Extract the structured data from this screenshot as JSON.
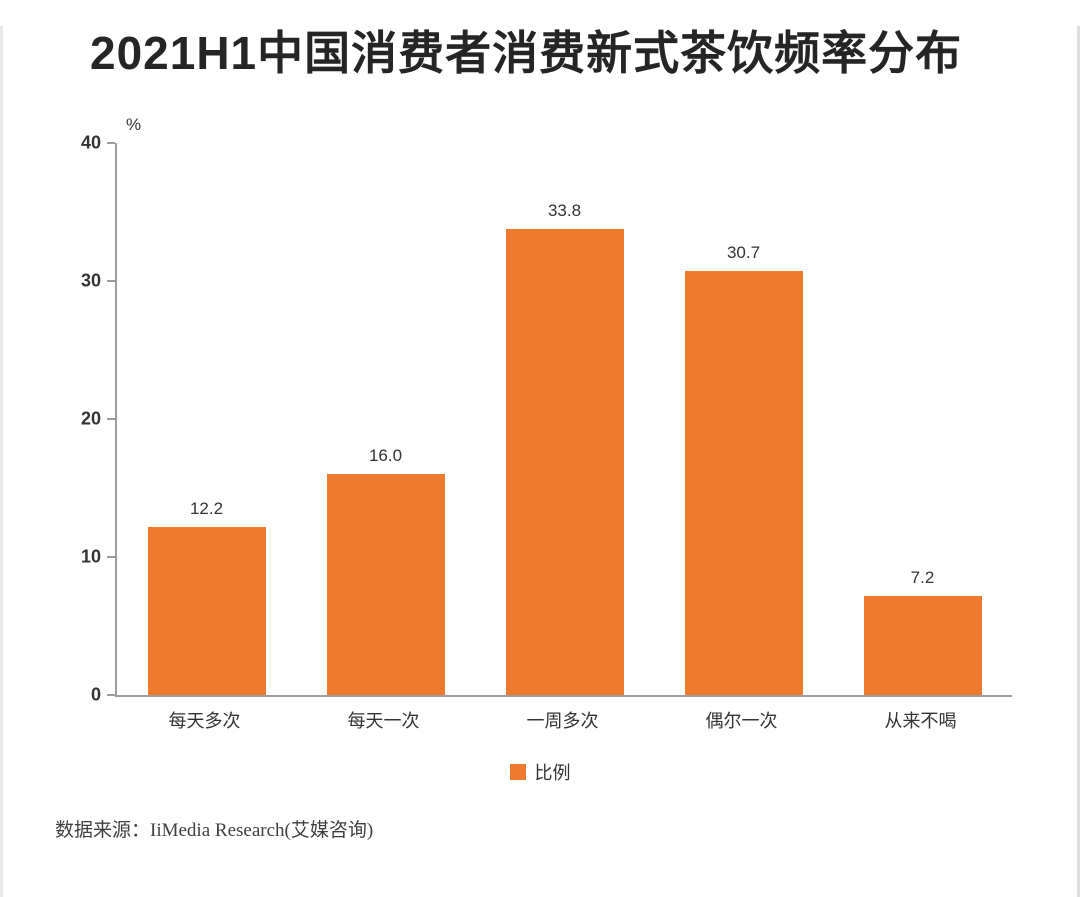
{
  "page": {
    "title": "2021H1中国消费者消费新式茶饮频率分布",
    "source": "数据来源：IiMedia Research(艾媒咨询)"
  },
  "chart_data": {
    "type": "bar",
    "title": "2021H1中国消费者消费新式茶饮频率分布",
    "categories": [
      "每天多次",
      "每天一次",
      "一周多次",
      "偶尔一次",
      "从来不喝"
    ],
    "series": [
      {
        "name": "比例",
        "values": [
          12.2,
          16.0,
          33.8,
          30.7,
          7.2
        ]
      }
    ],
    "value_labels": [
      "12.2",
      "16.0",
      "33.8",
      "30.7",
      "7.2"
    ],
    "y_unit": "%",
    "y_ticks": [
      0,
      10,
      20,
      30,
      40
    ],
    "ylim": [
      0,
      40
    ],
    "bar_color": "#ed7a2d",
    "axis_color": "#9c9c9c",
    "grid": false,
    "legend": {
      "label": "比例",
      "position": "bottom"
    }
  }
}
